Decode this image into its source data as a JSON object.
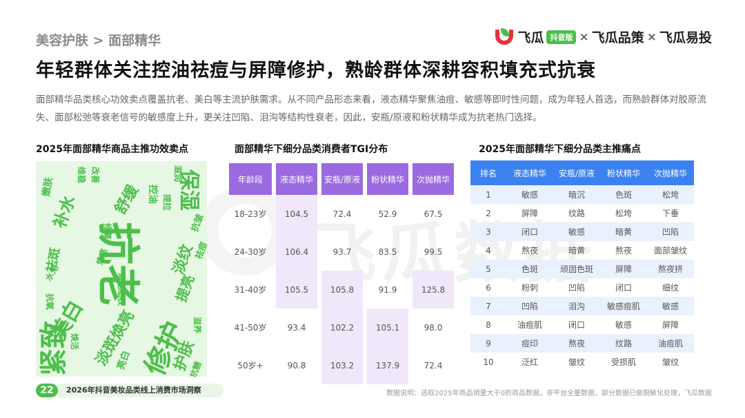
{
  "breadcrumb": "美容护肤 > 面部精华",
  "brand": {
    "name1": "飞瓜",
    "pill": "抖音版",
    "sep": "×",
    "name2": "飞瓜品策",
    "name3": "飞瓜易投"
  },
  "headline": "年轻群体关注控油祛痘与屏障修护，熟龄群体深耕容积填充式抗衰",
  "description": "面部精华品类核心功效卖点覆盖抗老、美白等主流护肤需求。从不同产品形态来看，液态精华聚焦油痘、敏感等即时性问题，成为年轻人首选，而熟龄群体对胶原流失、面部松弛等衰老信号的敏感度上升，更关注凹陷、泪沟等结构性衰老，因此，安瓶/原液和粉状精华成为抗老热门选择。",
  "watermark": "飞瓜数据",
  "colors": {
    "green": "#4cbf4b",
    "purple": "#9b6ae0",
    "blue": "#3b82f0",
    "red": "#e8313c"
  },
  "wordcloud": {
    "title": "2025年面部精华商品主推功效卖点",
    "words": [
      "抗老",
      "紧致",
      "修护",
      "保湿",
      "美白",
      "淡斑焕亮",
      "补水",
      "舒缓",
      "淡纹",
      "提亮",
      "祛斑",
      "护肤",
      "亮白",
      "控油",
      "滋养",
      "抗皱",
      "祛痘",
      "修复",
      "水光",
      "滋润",
      "嫩肤",
      "改善",
      "提拉",
      "淡化细纹",
      "焕亮",
      "抗氧",
      "维稳",
      "抗糖",
      "焕活"
    ]
  },
  "tgi": {
    "title": "面部精华下细分品类消费者TGI分布",
    "headers": [
      "年龄段",
      "液态精华",
      "安瓶/原液",
      "粉状精华",
      "次抛精华"
    ],
    "rows": [
      [
        "18-23岁",
        "104.5",
        "72.4",
        "52.9",
        "67.5"
      ],
      [
        "24-30岁",
        "106.4",
        "93.7",
        "83.5",
        "99.5"
      ],
      [
        "31-40岁",
        "105.5",
        "105.8",
        "91.9",
        "125.8"
      ],
      [
        "41-50岁",
        "93.4",
        "102.2",
        "105.1",
        "98.0"
      ],
      [
        "50岁+",
        "90.8",
        "103.2",
        "137.9",
        "72.4"
      ]
    ]
  },
  "pain": {
    "title": "2025年面部精华下细分品类主推痛点",
    "headers": [
      "排名",
      "液态精华",
      "安瓶/原液",
      "粉状精华",
      "次抛精华"
    ],
    "rows": [
      [
        "1",
        "敏感",
        "暗沉",
        "色斑",
        "松垮"
      ],
      [
        "2",
        "屏障",
        "纹路",
        "松垮",
        "下垂"
      ],
      [
        "3",
        "闭口",
        "敏感",
        "暗黄",
        "凹陷"
      ],
      [
        "4",
        "熬夜",
        "暗黄",
        "熬夜",
        "面部皱纹"
      ],
      [
        "5",
        "色斑",
        "顽固色斑",
        "屏障",
        "熬夜挤"
      ],
      [
        "6",
        "粉刺",
        "凹陷",
        "闭口",
        "细纹"
      ],
      [
        "7",
        "凹陷",
        "泪沟",
        "敏感痘肌",
        "敏感"
      ],
      [
        "8",
        "油痘肌",
        "闭口",
        "敏感",
        "屏障"
      ],
      [
        "9",
        "痘印",
        "熬夜",
        "纹路",
        "油痘肌"
      ],
      [
        "10",
        "泛红",
        "皱纹",
        "受损肌",
        "皱纹"
      ]
    ]
  },
  "footer": {
    "page": "22",
    "report": "2026年抖音美妆品类线上消费市场洞察",
    "note": "数据说明：选取2025年商品销量大于0的商品数据，非平台全量数据，部分数据已做脱敏化处理，飞瓜数据"
  }
}
